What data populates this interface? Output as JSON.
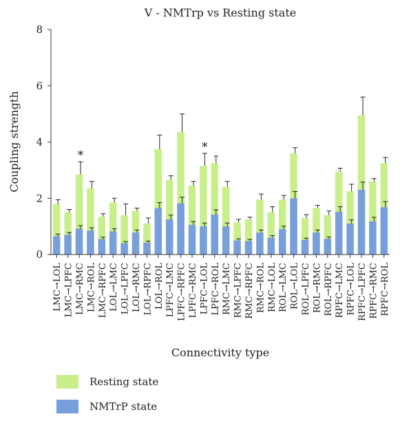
{
  "chart_data": {
    "type": "bar",
    "stacked": true,
    "title": "V - NMTrp vs Resting state",
    "xlabel": "Connectivity type",
    "ylabel": "Coupling strength",
    "ylim": [
      0,
      8
    ],
    "yticks": [
      0,
      2,
      4,
      6,
      8
    ],
    "grid": false,
    "legend_position": "bottom-left",
    "categories": [
      "LMC→LOL",
      "LMC→LPFC",
      "LMC→RMC",
      "LMC→ROL",
      "LMC→RPFC",
      "LOL→LMC",
      "LOL→LPFC",
      "LOL→RMC",
      "LOL→RPFC",
      "LOL→ROL",
      "LPFC→LMC",
      "LPFC→RPFC",
      "LPFC→RMC",
      "LPFC→LOL",
      "LPFC→ROL",
      "RMC→LMC",
      "RMC→LPFC",
      "RMC→RPFC",
      "RMC→ROL",
      "RMC→LOL",
      "ROL→LMC",
      "ROL→LOL",
      "ROL→LPFC",
      "ROL→RMC",
      "ROL→RPFC",
      "RPFC→LMC",
      "RPFC→LOL",
      "RPFC→LPFC",
      "RPFC→RMC",
      "RPFC→ROL"
    ],
    "series": [
      {
        "name": "Resting state",
        "color": "#c9ef8a",
        "values": [
          1.8,
          1.5,
          2.85,
          2.35,
          1.35,
          1.85,
          1.4,
          1.55,
          1.1,
          3.75,
          2.65,
          4.35,
          2.45,
          3.15,
          3.25,
          2.4,
          1.15,
          1.25,
          1.95,
          1.5,
          1.95,
          3.6,
          1.3,
          1.65,
          1.4,
          2.95,
          2.25,
          4.95,
          2.6,
          3.25
        ],
        "errors": [
          0.15,
          0.1,
          0.45,
          0.25,
          0.1,
          0.15,
          0.4,
          0.1,
          0.2,
          0.5,
          0.15,
          0.65,
          0.15,
          0.45,
          0.25,
          0.2,
          0.1,
          0.08,
          0.2,
          0.2,
          0.15,
          0.2,
          0.12,
          0.1,
          0.15,
          0.12,
          0.25,
          0.65,
          0.1,
          0.2
        ]
      },
      {
        "name": "NMTrP state",
        "color": "#779fdc",
        "values": [
          0.65,
          0.7,
          0.92,
          0.85,
          0.55,
          0.82,
          0.4,
          0.78,
          0.42,
          1.65,
          1.25,
          1.82,
          1.05,
          1.0,
          1.42,
          1.0,
          0.5,
          0.48,
          0.78,
          0.6,
          0.9,
          2.0,
          0.52,
          0.78,
          0.56,
          1.52,
          1.1,
          2.3,
          1.18,
          1.68
        ]
      }
    ],
    "annotations": [
      {
        "category": "LMC→RMC",
        "text": "*"
      },
      {
        "category": "LPFC→LOL",
        "text": "*"
      }
    ]
  }
}
